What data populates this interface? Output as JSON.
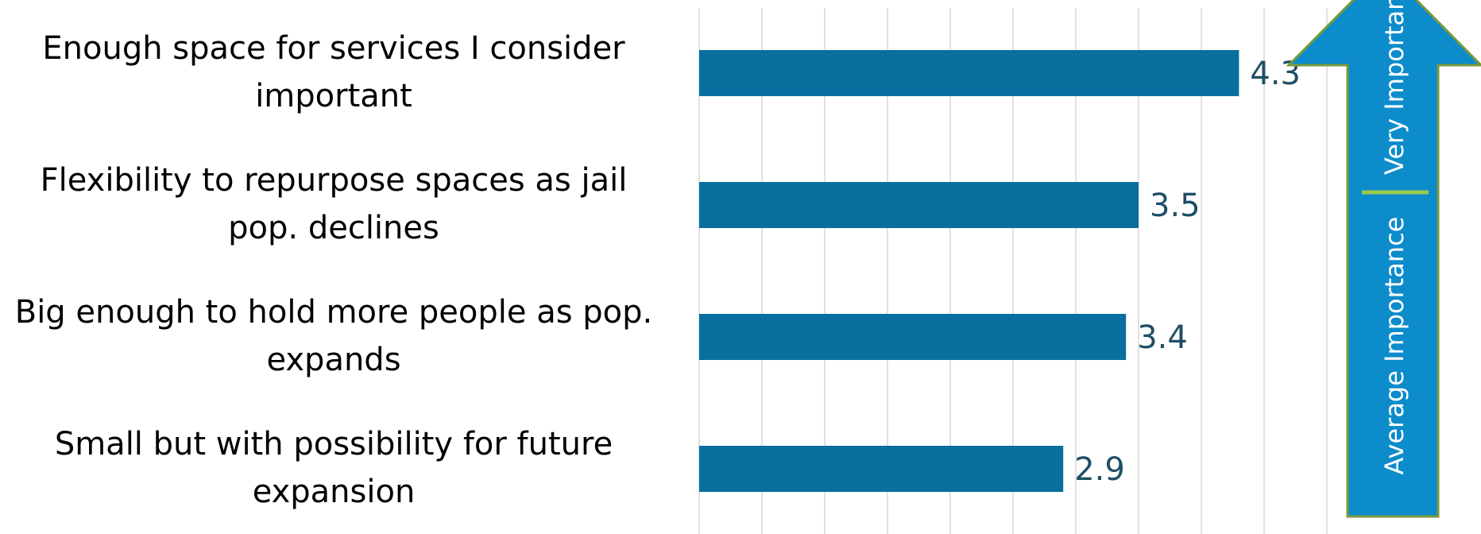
{
  "chart_data": {
    "type": "bar",
    "orientation": "horizontal",
    "categories": [
      "Enough space for services I consider important",
      "Flexibility to repurpose spaces as jail pop. declines",
      "Big enough to hold more people as pop. expands",
      "Small but with possibility for future expansion"
    ],
    "category_lines": [
      [
        "Enough space for services I consider",
        "important"
      ],
      [
        "Flexibility to repurpose spaces as jail",
        "pop. declines"
      ],
      [
        "Big enough to hold more people as pop.",
        "expands"
      ],
      [
        "Small but with possibility for future",
        "expansion"
      ]
    ],
    "values": [
      4.3,
      3.5,
      3.4,
      2.9
    ],
    "value_labels": [
      "4.3",
      "3.5",
      "3.4",
      "2.9"
    ],
    "xlim": [
      0,
      5
    ],
    "grid_step": 0.5,
    "grid": true,
    "bar_color": "#086f9f",
    "annotation_arrow": {
      "direction": "up",
      "labels": [
        "Average Importance",
        "Very Important"
      ],
      "fill_color": "#0d8ccc",
      "border_color": "#7a9a3a",
      "divider_color": "#9bcb4d"
    }
  }
}
